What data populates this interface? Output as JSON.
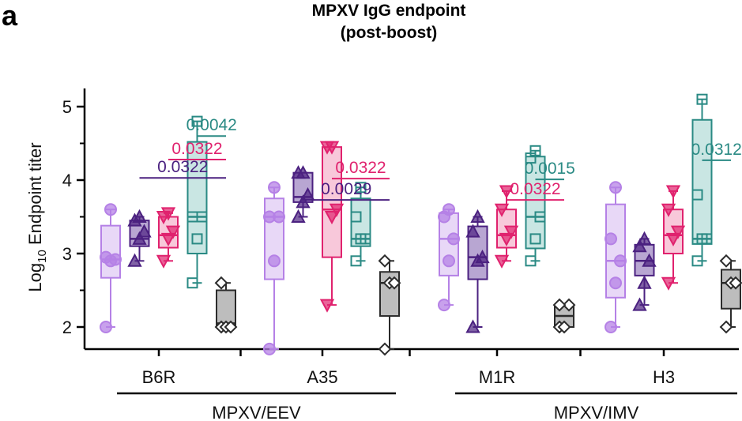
{
  "panel_label": "a",
  "chart_data": {
    "type": "box",
    "title": "MPXV IgG endpoint",
    "subtitle": "(post-boost)",
    "ylabel": "Log",
    "ylabel_sub": "10",
    "ylabel_rest": " Endpoint titer",
    "ylim": [
      1.75,
      5.3
    ],
    "yticks": [
      "2",
      "3",
      "4",
      "5"
    ],
    "categories": [
      "B6R",
      "A35",
      "M1R",
      "H3"
    ],
    "category_groups": [
      {
        "label": "MPXV/EEV",
        "categories": [
          "B6R",
          "A35"
        ]
      },
      {
        "label": "MPXV/IMV",
        "categories": [
          "M1R",
          "H3"
        ]
      }
    ],
    "groups": [
      {
        "color": "#b581e6",
        "fill": "#e8d8f7",
        "marker": "circle"
      },
      {
        "color": "#4b2180",
        "fill": "#b8a6d2",
        "marker": "triangle-up"
      },
      {
        "color": "#e0226e",
        "fill": "#f8c8da",
        "marker": "triangle-down"
      },
      {
        "color": "#2a8a84",
        "fill": "#c9e6e3",
        "marker": "square"
      },
      {
        "color": "#2b2b2b",
        "fill": "#bdbdbd",
        "marker": "diamond"
      }
    ],
    "boxes": [
      {
        "category": "B6R",
        "group": 0,
        "min": 2.0,
        "q1": 2.67,
        "median": 2.92,
        "q3": 3.38,
        "max": 3.6,
        "points": [
          2.0,
          2.9,
          2.92,
          2.95,
          3.6
        ]
      },
      {
        "category": "B6R",
        "group": 1,
        "min": 2.9,
        "q1": 3.1,
        "median": 3.2,
        "q3": 3.45,
        "max": 3.5,
        "points": [
          2.9,
          3.2,
          3.3,
          3.45,
          3.5
        ]
      },
      {
        "category": "B6R",
        "group": 2,
        "min": 2.9,
        "q1": 3.08,
        "median": 3.25,
        "q3": 3.5,
        "max": 3.55,
        "points": [
          2.9,
          3.2,
          3.3,
          3.5,
          3.55
        ]
      },
      {
        "category": "B6R",
        "group": 3,
        "min": 2.6,
        "q1": 3.0,
        "median": 3.5,
        "q3": 4.52,
        "max": 4.8,
        "points": [
          2.6,
          3.2,
          3.5,
          3.5,
          4.8
        ]
      },
      {
        "category": "B6R",
        "group": 4,
        "min": 2.0,
        "q1": 2.0,
        "median": 2.05,
        "q3": 2.5,
        "max": 2.6,
        "points": [
          2.0,
          2.0,
          2.0,
          2.6
        ]
      },
      {
        "category": "A35",
        "group": 0,
        "min": 1.7,
        "q1": 2.65,
        "median": 3.5,
        "q3": 3.75,
        "max": 3.9,
        "points": [
          1.7,
          2.9,
          3.5,
          3.5,
          3.9
        ]
      },
      {
        "category": "A35",
        "group": 1,
        "min": 3.5,
        "q1": 3.7,
        "median": 3.77,
        "q3": 4.1,
        "max": 4.1,
        "points": [
          3.5,
          3.7,
          3.8,
          4.1,
          4.1
        ]
      },
      {
        "category": "A35",
        "group": 2,
        "min": 2.3,
        "q1": 2.95,
        "median": 3.6,
        "q3": 4.45,
        "max": 4.45,
        "points": [
          2.3,
          3.5,
          3.6,
          4.45,
          4.45
        ]
      },
      {
        "category": "A35",
        "group": 3,
        "min": 2.9,
        "q1": 3.1,
        "median": 3.2,
        "q3": 3.75,
        "max": 3.9,
        "points": [
          2.9,
          3.2,
          3.2,
          3.5,
          3.9
        ]
      },
      {
        "category": "A35",
        "group": 4,
        "min": 1.7,
        "q1": 2.15,
        "median": 2.6,
        "q3": 2.75,
        "max": 2.9,
        "points": [
          1.7,
          2.6,
          2.6,
          2.9
        ]
      },
      {
        "category": "M1R",
        "group": 0,
        "min": 2.3,
        "q1": 2.7,
        "median": 3.2,
        "q3": 3.55,
        "max": 3.6,
        "points": [
          2.3,
          2.9,
          3.2,
          3.5,
          3.6
        ]
      },
      {
        "category": "M1R",
        "group": 1,
        "min": 2.0,
        "q1": 2.65,
        "median": 2.95,
        "q3": 3.37,
        "max": 3.5,
        "points": [
          2.0,
          2.9,
          2.95,
          3.3,
          3.5
        ]
      },
      {
        "category": "M1R",
        "group": 2,
        "min": 2.9,
        "q1": 3.08,
        "median": 3.25,
        "q3": 3.6,
        "max": 3.85,
        "points": [
          2.9,
          3.2,
          3.3,
          3.6,
          3.85
        ]
      },
      {
        "category": "M1R",
        "group": 3,
        "min": 2.9,
        "q1": 3.07,
        "median": 3.5,
        "q3": 4.32,
        "max": 4.4,
        "points": [
          2.9,
          3.2,
          3.5,
          4.3,
          4.4
        ]
      },
      {
        "category": "M1R",
        "group": 4,
        "min": 2.0,
        "q1": 2.0,
        "median": 2.15,
        "q3": 2.3,
        "max": 2.3,
        "points": [
          2.0,
          2.0,
          2.3,
          2.3
        ]
      },
      {
        "category": "H3",
        "group": 0,
        "min": 2.0,
        "q1": 2.4,
        "median": 2.9,
        "q3": 3.67,
        "max": 3.9,
        "points": [
          2.0,
          2.6,
          2.9,
          3.2,
          3.9
        ]
      },
      {
        "category": "H3",
        "group": 1,
        "min": 2.3,
        "q1": 2.7,
        "median": 2.9,
        "q3": 3.12,
        "max": 3.2,
        "points": [
          2.3,
          2.6,
          2.9,
          3.1,
          3.2
        ]
      },
      {
        "category": "H3",
        "group": 2,
        "min": 2.6,
        "q1": 3.0,
        "median": 3.25,
        "q3": 3.6,
        "max": 3.85,
        "points": [
          2.6,
          3.2,
          3.3,
          3.6,
          3.85
        ]
      },
      {
        "category": "H3",
        "group": 3,
        "min": 2.9,
        "q1": 3.13,
        "median": 3.2,
        "q3": 4.82,
        "max": 5.1,
        "points": [
          2.9,
          3.2,
          3.2,
          3.8,
          5.1
        ]
      },
      {
        "category": "H3",
        "group": 4,
        "min": 2.0,
        "q1": 2.25,
        "median": 2.6,
        "q3": 2.78,
        "max": 2.9,
        "points": [
          2.0,
          2.6,
          2.6,
          2.9
        ]
      }
    ],
    "significance": [
      {
        "category": "B6R",
        "from_group": 1,
        "to_group": 4,
        "p": "0.0322",
        "color": "#4b2180",
        "y": 4.03
      },
      {
        "category": "B6R",
        "from_group": 2,
        "to_group": 4,
        "p": "0.0322",
        "color": "#e0226e",
        "y": 4.28
      },
      {
        "category": "B6R",
        "from_group": 3,
        "to_group": 4,
        "p": "0.0042",
        "color": "#2a8a84",
        "y": 4.6
      },
      {
        "category": "A35",
        "from_group": 1,
        "to_group": 4,
        "p": "0.0029",
        "color": "#4b2180",
        "y": 3.73
      },
      {
        "category": "A35",
        "from_group": 2,
        "to_group": 4,
        "p": "0.0322",
        "color": "#e0226e",
        "y": 4.02
      },
      {
        "category": "M1R",
        "from_group": 2,
        "to_group": 4,
        "p": "0.0322",
        "color": "#e0226e",
        "y": 3.73
      },
      {
        "category": "M1R",
        "from_group": 3,
        "to_group": 4,
        "p": "0.0015",
        "color": "#2a8a84",
        "y": 4.01
      },
      {
        "category": "H3",
        "from_group": 3,
        "to_group": 4,
        "p": "0.0312",
        "color": "#2a8a84",
        "y": 4.27
      }
    ]
  }
}
